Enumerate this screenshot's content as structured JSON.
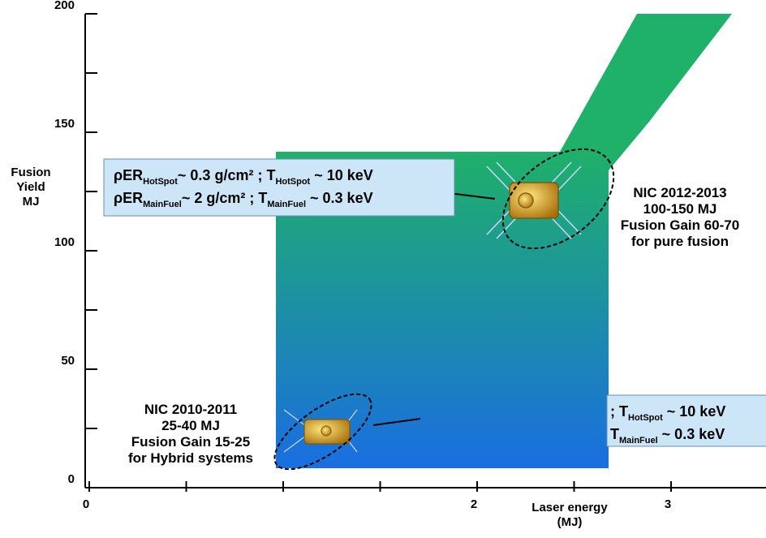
{
  "chart_data": {
    "type": "region",
    "y_label": [
      "Fusion",
      "Yield",
      "MJ"
    ],
    "x_label": [
      "Laser energy",
      "(MJ)"
    ],
    "ylim": [
      0,
      200
    ],
    "yticks": [
      0,
      50,
      100,
      150,
      200
    ],
    "yminor_ticks": [
      25,
      75,
      125,
      175
    ],
    "xlim": [
      0,
      3.5
    ],
    "xticks": [
      0,
      2,
      3
    ],
    "xminor_ticks": [
      0.5,
      1,
      1.5,
      2.5,
      3.5
    ],
    "annotations": [
      {
        "lines": [
          [
            "ρER",
            "HotSpot",
            "~ 0.3 g/cm² ; T",
            "HotSpot",
            " ~ 10 keV"
          ],
          [
            "ρER",
            "MainFuel",
            "~ 2 g/cm² ; T",
            "MainFuel",
            " ~ 0.3 keV"
          ]
        ]
      },
      {
        "lines": [
          [
            "; T",
            "HotSpot",
            " ~ 10 keV"
          ],
          [
            "T",
            "MainFuel",
            " ~ 0.3 keV"
          ]
        ]
      },
      {
        "lines": [
          [
            "NIC 2012-2013"
          ],
          [
            "100-150 MJ"
          ],
          [
            "Fusion Gain 60-70"
          ],
          [
            "for pure fusion"
          ]
        ]
      },
      {
        "lines": [
          [
            "NIC 2010-2011"
          ],
          [
            "25-40 MJ"
          ],
          [
            "Fusion Gain 15-25"
          ],
          [
            "for Hybrid systems"
          ]
        ]
      }
    ]
  }
}
